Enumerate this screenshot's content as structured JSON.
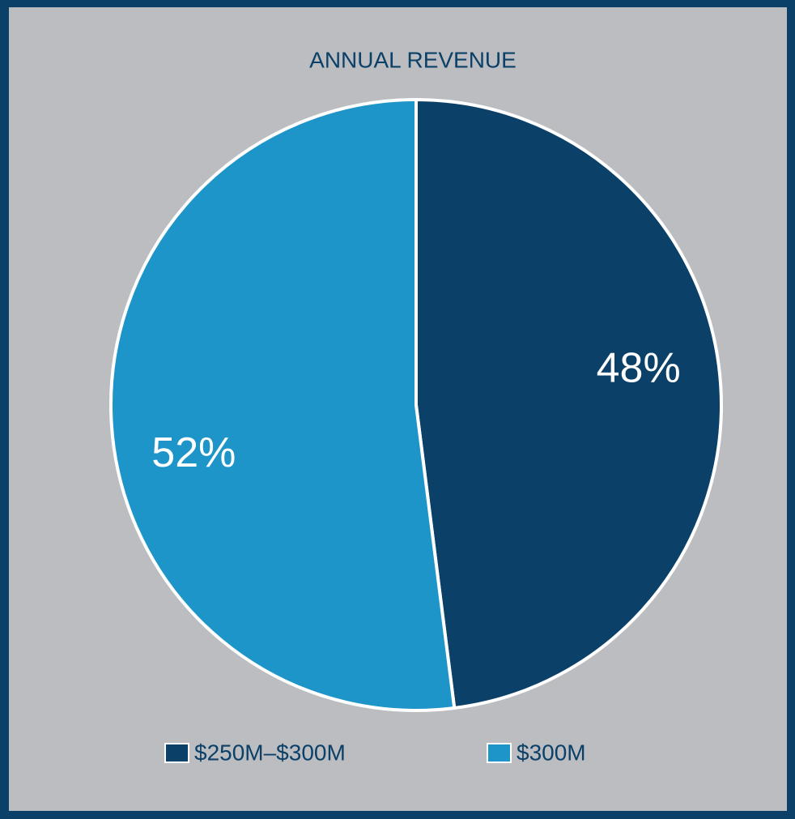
{
  "chart_data": {
    "type": "pie",
    "title": "ANNUAL REVENUE",
    "categories": [
      "$250M–$300M",
      "$300M"
    ],
    "values": [
      48,
      52
    ],
    "value_labels": [
      "48%",
      "52%"
    ],
    "colors": [
      "#0b4068",
      "#1e95c9"
    ]
  }
}
